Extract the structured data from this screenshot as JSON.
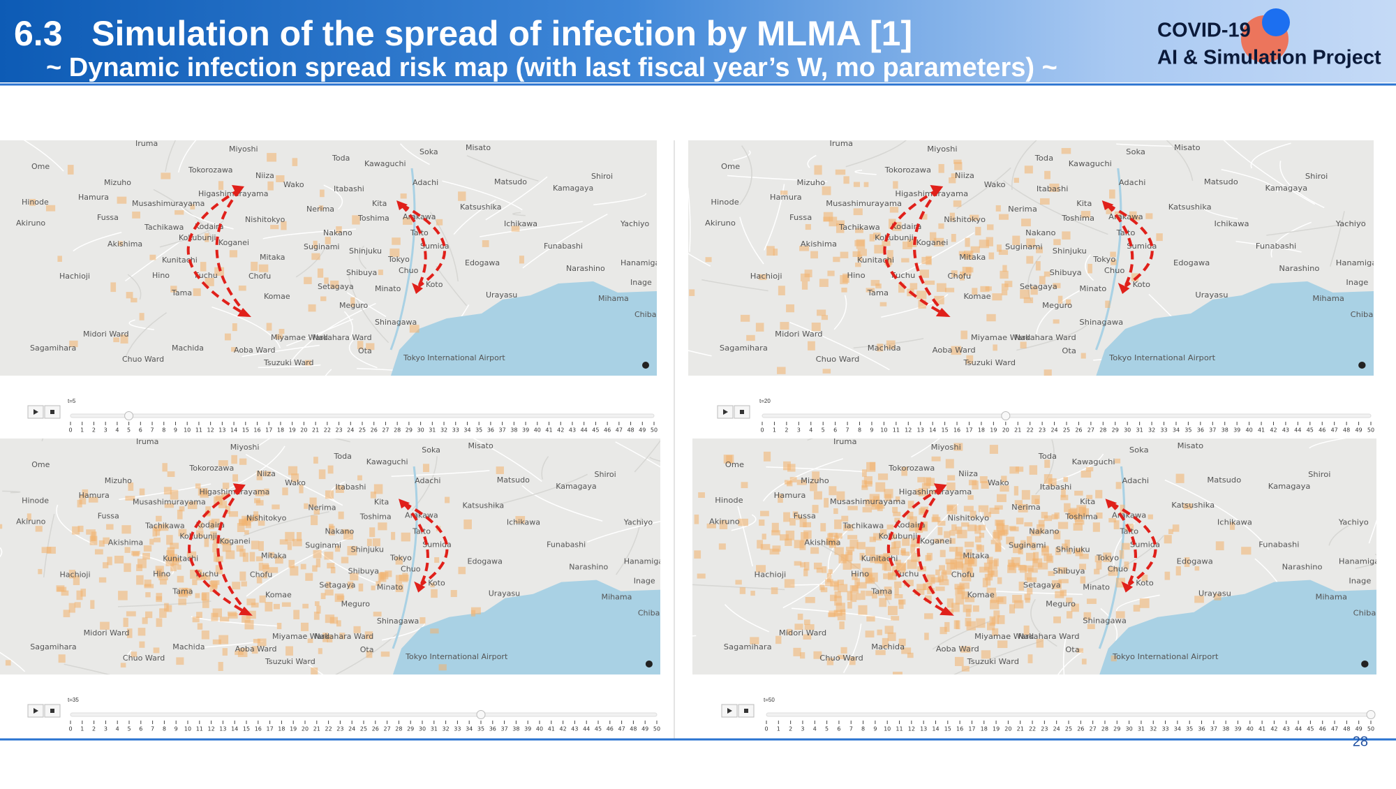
{
  "header": {
    "title": "6.3   Simulation of the spread of infection by MLMA [1]",
    "subtitle": "~ Dynamic infection spread risk map (with last fiscal year’s W, mo parameters) ~",
    "logo_line1": "COVID-19",
    "logo_line2": "AI & Simulation Project"
  },
  "map_labels": [
    "Iruma",
    "Miyoshi",
    "Toda",
    "Soka",
    "Misato",
    "Kawaguchi",
    "Ome",
    "Tokorozawa",
    "Niiza",
    "Wako",
    "Adachi",
    "Matsudo",
    "Shiroi",
    "Kamagaya",
    "Mizuho",
    "Hamura",
    "Higashimurayama",
    "Itabashi",
    "Hinode",
    "Musashimurayama",
    "Kita",
    "Katsushika",
    "Nerima",
    "Fussa",
    "Nishitokyo",
    "Toshima",
    "Arakawa",
    "Ichikawa",
    "Yachiyo",
    "Akiruno",
    "Tachikawa",
    "Kodaira",
    "Nakano",
    "Taito",
    "Kokubunji",
    "Koganei",
    "Suginami",
    "Sumida",
    "Akishima",
    "Funabashi",
    "Shinjuku",
    "Mitaka",
    "Tokyo",
    "Edogawa",
    "Hanamigawa",
    "Kunitachi",
    "Narashino",
    "Shibuya",
    "Hachioji",
    "Hino",
    "Fuchu",
    "Chofu",
    "Chuo",
    "Minato",
    "Setagaya",
    "Koto",
    "Inage",
    "Urayasu",
    "Tama",
    "Komae",
    "Mihama",
    "Meguro",
    "Chiba",
    "Shinagawa",
    "Midori Ward",
    "Miyamae Ward",
    "Nakahara Ward",
    "Sagamihara",
    "Machida",
    "Aoba Ward",
    "Ota",
    "Tokyo International Airport",
    "Chuo Ward",
    "Tsuzuki Ward"
  ],
  "slider_ticks": [
    0,
    1,
    2,
    3,
    4,
    5,
    6,
    7,
    8,
    9,
    10,
    11,
    12,
    13,
    14,
    15,
    16,
    17,
    18,
    19,
    20,
    21,
    22,
    23,
    24,
    25,
    26,
    27,
    28,
    29,
    30,
    31,
    32,
    33,
    34,
    35,
    36,
    37,
    38,
    39,
    40,
    41,
    42,
    43,
    44,
    45,
    46,
    47,
    48,
    49,
    50
  ],
  "panels": [
    {
      "time_label": "t=5",
      "time": 5
    },
    {
      "time_label": "t=20",
      "time": 20
    },
    {
      "time_label": "t=35",
      "time": 35
    },
    {
      "time_label": "t=50",
      "time": 50
    }
  ],
  "page_number": "28"
}
